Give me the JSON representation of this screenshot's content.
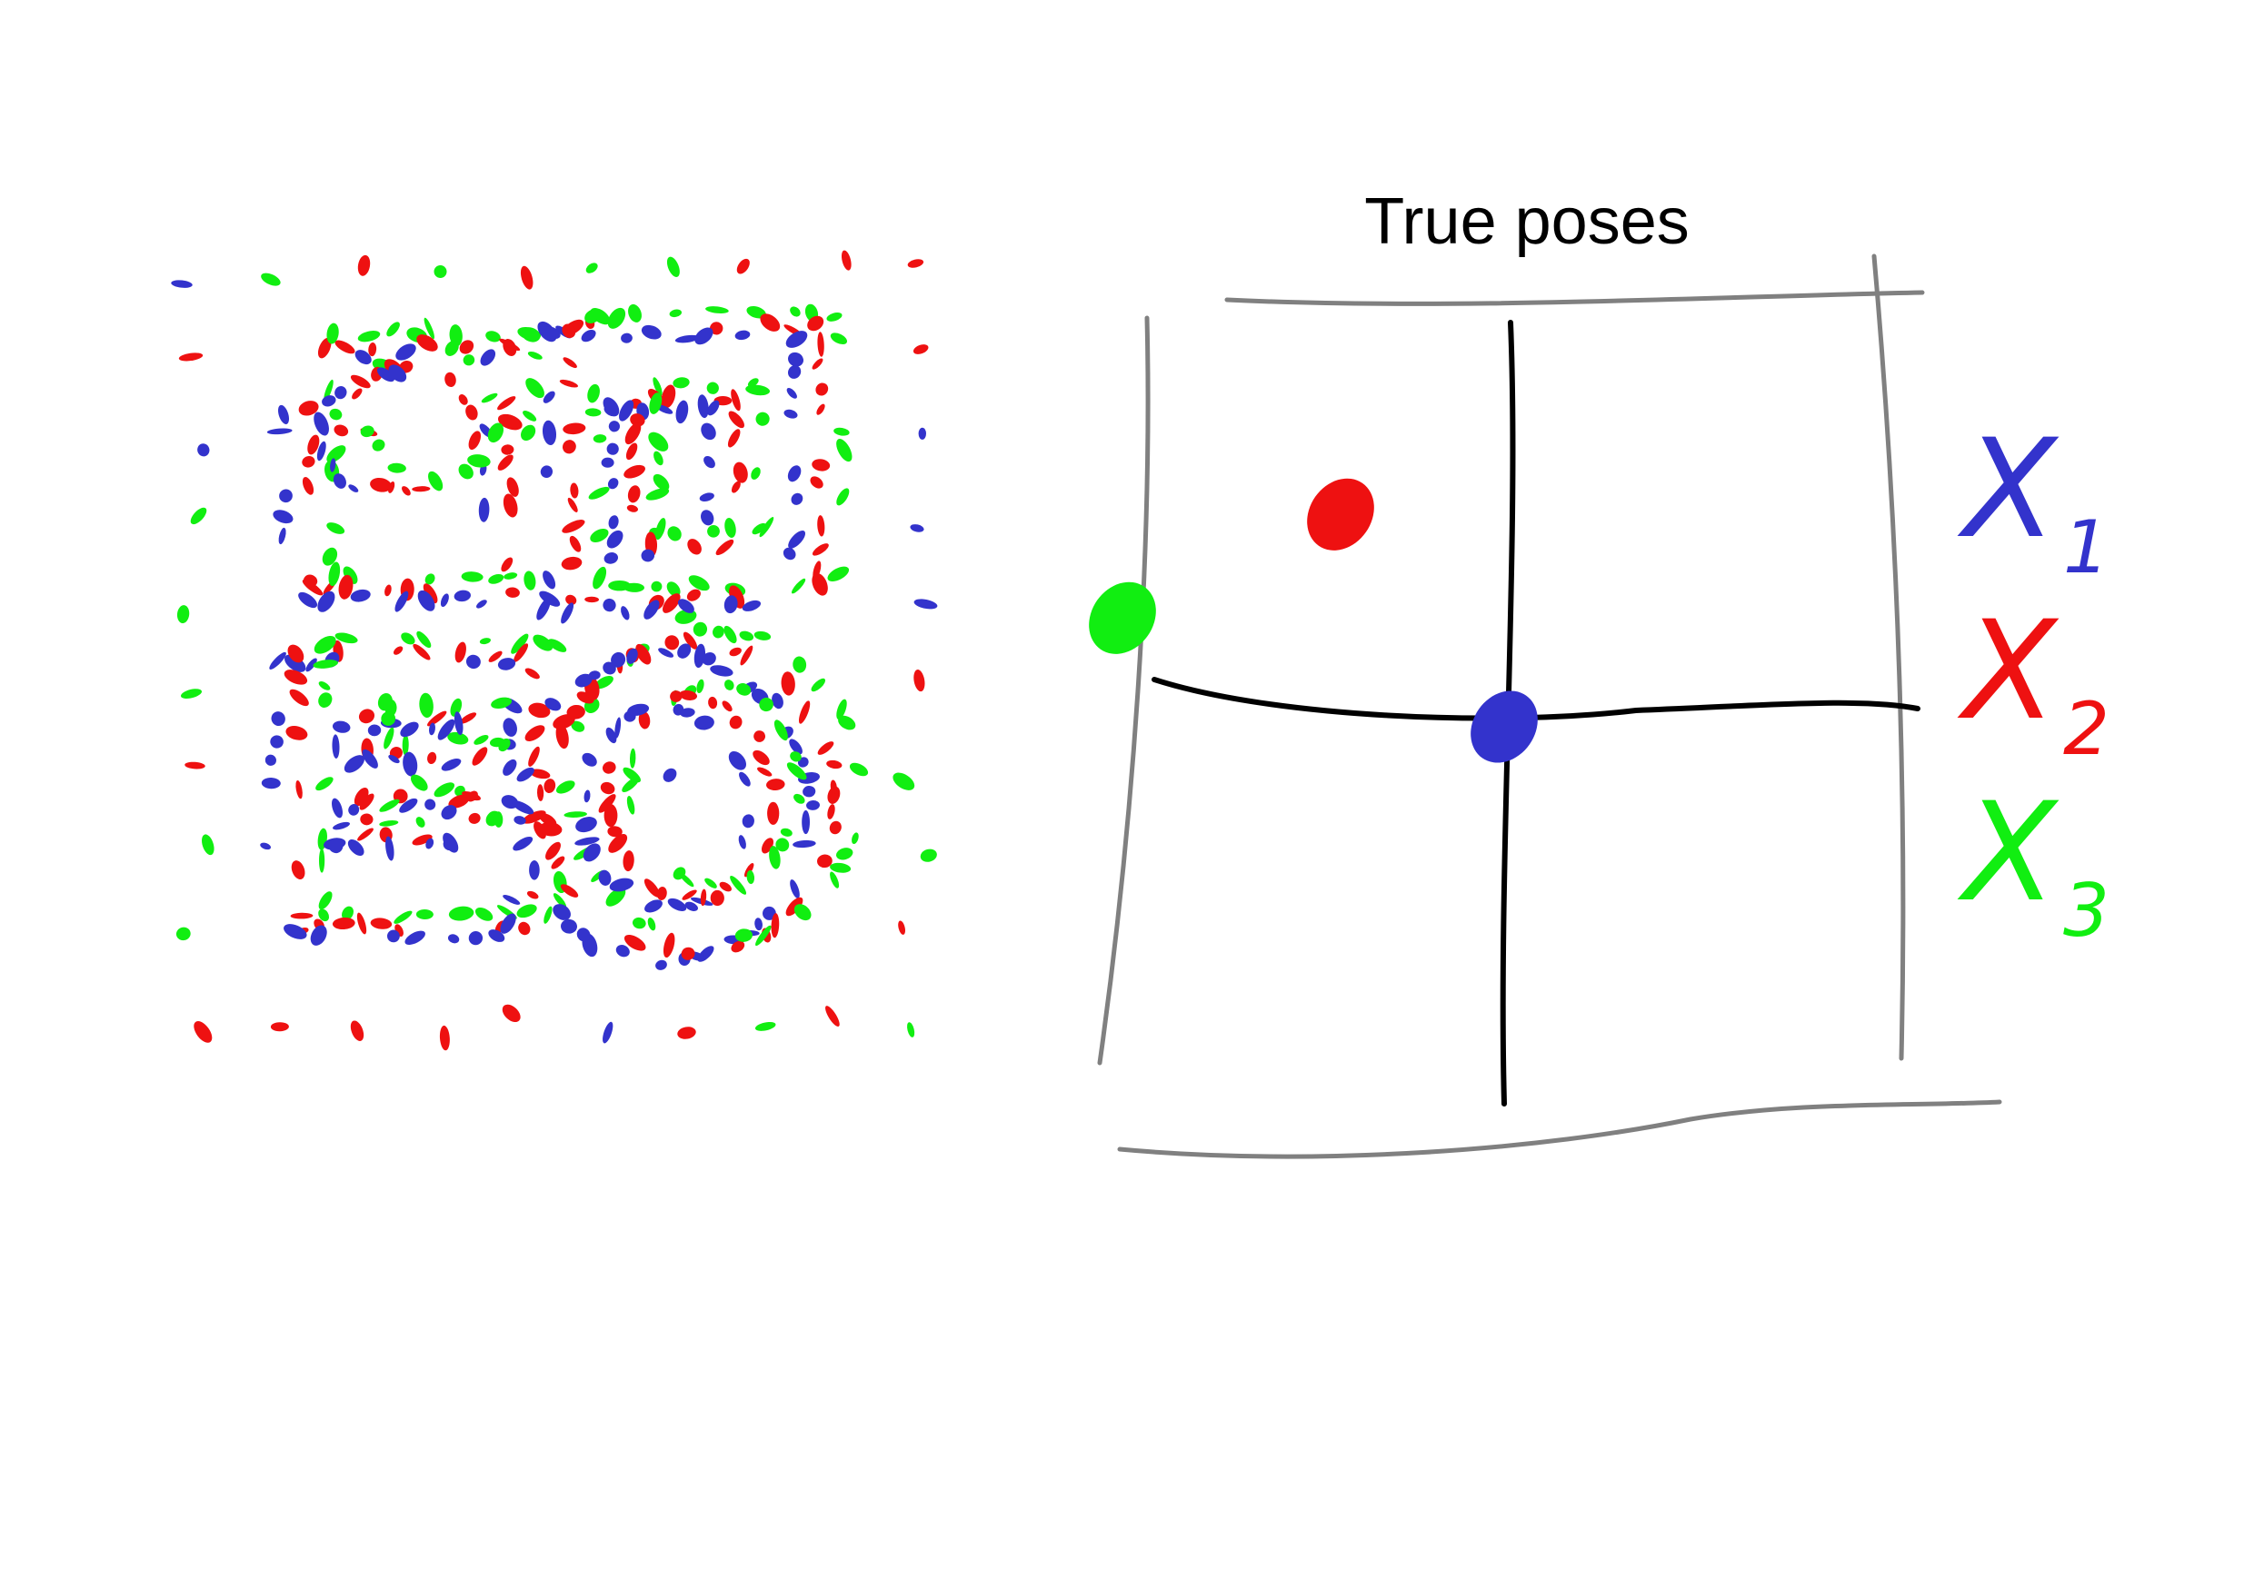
{
  "title": "True poses",
  "colors": {
    "x1": "#3333cc",
    "x2": "#ee1111",
    "x3": "#11ee11",
    "axis": "#000000",
    "frame": "#808080"
  },
  "legend": [
    {
      "symbol": "X",
      "subscript": "1",
      "color": "#3333cc"
    },
    {
      "symbol": "X",
      "subscript": "2",
      "color": "#ee1111"
    },
    {
      "symbol": "X",
      "subscript": "3",
      "color": "#11ee11"
    }
  ],
  "poses": [
    {
      "name": "X1",
      "x": 0.0,
      "y": 0.0,
      "color": "#3333cc"
    },
    {
      "name": "X2",
      "x": -0.45,
      "y": 0.82,
      "color": "#ee1111"
    },
    {
      "name": "X3",
      "x": -1.05,
      "y": 0.42,
      "color": "#11ee11"
    }
  ],
  "scene": {
    "description_icon": "scattered-dot-pattern-icon",
    "letters": [
      "2",
      "D",
      "E",
      "O"
    ]
  }
}
